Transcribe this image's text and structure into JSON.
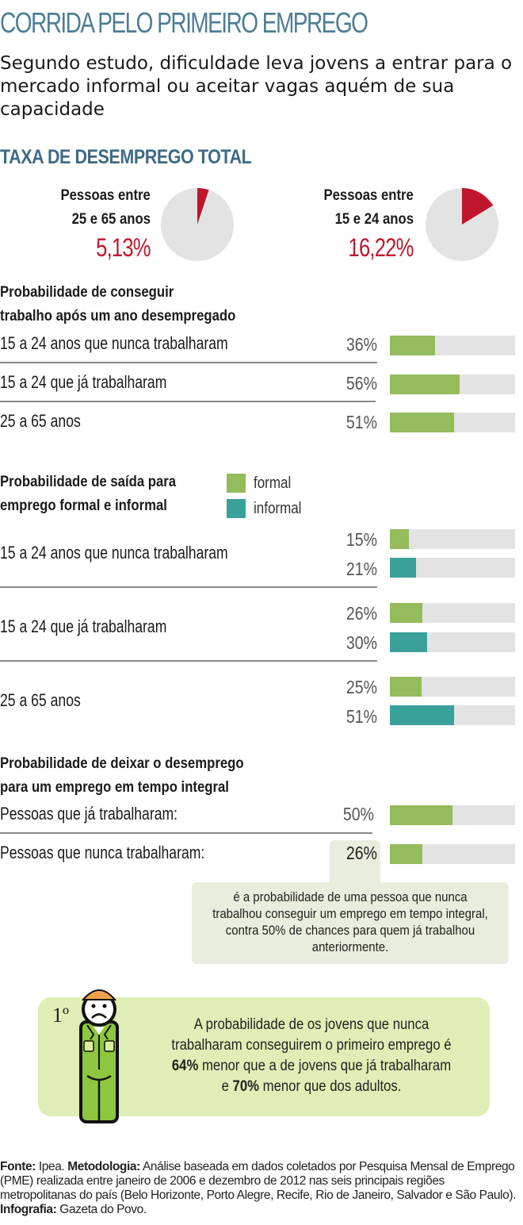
{
  "header": {
    "title": "CORRIDA PELO PRIMEIRO EMPREGO",
    "subtitle": "Segundo estudo, dificuldade leva jovens a entrar para o mercado informal ou aceitar vagas aquém de sua capacidade"
  },
  "colors": {
    "title": "#4e7d96",
    "pie_highlight": "#c0162c",
    "pie_base": "#e3e3e3",
    "formal": "#94bb5c",
    "informal": "#3aa19a",
    "track": "#e3e3e3"
  },
  "unemployment": {
    "heading": "TAXA DE DESEMPREGO TOTAL",
    "groups": [
      {
        "label_line1": "Pessoas entre",
        "label_line2": "25 e 65 anos",
        "value_text": "5,13%"
      },
      {
        "label_line1": "Pessoas entre",
        "label_line2": "15 e 24 anos",
        "value_text": "16,22%"
      }
    ]
  },
  "after_year": {
    "heading_line1": "Probabilidade de conseguir",
    "heading_line2": "trabalho após um ano desempregado",
    "rows": [
      {
        "label": "15 a 24 anos que nunca trabalharam",
        "value_text": "36%"
      },
      {
        "label": "15 a 24 que já trabalharam",
        "value_text": "56%"
      },
      {
        "label": "25 a 65 anos",
        "value_text": "51%"
      }
    ]
  },
  "exit": {
    "heading_line1": "Probabilidade de saída para",
    "heading_line2": "emprego formal e informal",
    "legend": {
      "formal": "formal",
      "informal": "informal"
    },
    "rows": [
      {
        "label": "15 a 24 anos que nunca trabalharam",
        "formal_text": "15%",
        "informal_text": "21%"
      },
      {
        "label": "15 a 24 que já trabalharam",
        "formal_text": "26%",
        "informal_text": "30%"
      },
      {
        "label": "25 a 65 anos",
        "formal_text": "25%",
        "informal_text": "51%"
      }
    ]
  },
  "fulltime": {
    "heading_line1": "Probabilidade de deixar o desemprego",
    "heading_line2": "para um emprego em tempo integral",
    "rows": [
      {
        "label": "Pessoas que já trabalharam:",
        "value_text": "50%"
      },
      {
        "label": "Pessoas que nunca trabalharam:",
        "value_text": "26%"
      }
    ],
    "callout": "é a probabilidade de uma pessoa que nunca trabalhou conseguir um emprego em tempo integral, contra 50% de chances para quem já trabalhou anteriormente."
  },
  "highlight": {
    "badge": "1º",
    "text_part1": "A probabilidade de os jovens que nunca trabalharam conseguirem o primeiro emprego é ",
    "bold1": "64%",
    "text_part2": " menor que a de jovens que já trabalharam e ",
    "bold2": "70%",
    "text_part3": " menor que dos adultos."
  },
  "footer": {
    "source_label": "Fonte:",
    "source": " Ipea. ",
    "method_label": "Metodologia:",
    "method": " Análise baseada em dados coletados por Pesquisa Mensal de Emprego (PME) realizada entre janeiro de 2006 e dezembro de 2012 nas seis principais regiões metropolitanas do país (Belo Horizonte, Porto Alegre, Recife, Rio de Janeiro, Salvador e São Paulo). ",
    "credit_label": "Infografia:",
    "credit": " Gazeta do Povo."
  },
  "chart_data": [
    {
      "type": "pie",
      "title": "TAXA DE DESEMPREGO TOTAL",
      "categories": [
        "Pessoas entre 25 e 65 anos",
        "Pessoas entre 15 e 24 anos"
      ],
      "values": [
        5.13,
        16.22
      ],
      "unit": "%"
    },
    {
      "type": "bar",
      "orientation": "horizontal",
      "title": "Probabilidade de conseguir trabalho após um ano desempregado",
      "categories": [
        "15 a 24 anos que nunca trabalharam",
        "15 a 24 que já trabalharam",
        "25 a 65 anos"
      ],
      "values": [
        36,
        56,
        51
      ],
      "xlim": [
        0,
        100
      ],
      "unit": "%"
    },
    {
      "type": "bar",
      "orientation": "horizontal",
      "title": "Probabilidade de saída para emprego formal e informal",
      "categories": [
        "15 a 24 anos que nunca trabalharam",
        "15 a 24 que já trabalharam",
        "25 a 65 anos"
      ],
      "series": [
        {
          "name": "formal",
          "values": [
            15,
            26,
            25
          ]
        },
        {
          "name": "informal",
          "values": [
            21,
            30,
            51
          ]
        }
      ],
      "legend": "top-left",
      "xlim": [
        0,
        100
      ],
      "unit": "%"
    },
    {
      "type": "bar",
      "orientation": "horizontal",
      "title": "Probabilidade de deixar o desemprego para um emprego em tempo integral",
      "categories": [
        "Pessoas que já trabalharam",
        "Pessoas que nunca trabalharam"
      ],
      "values": [
        50,
        26
      ],
      "xlim": [
        0,
        100
      ],
      "unit": "%"
    }
  ]
}
